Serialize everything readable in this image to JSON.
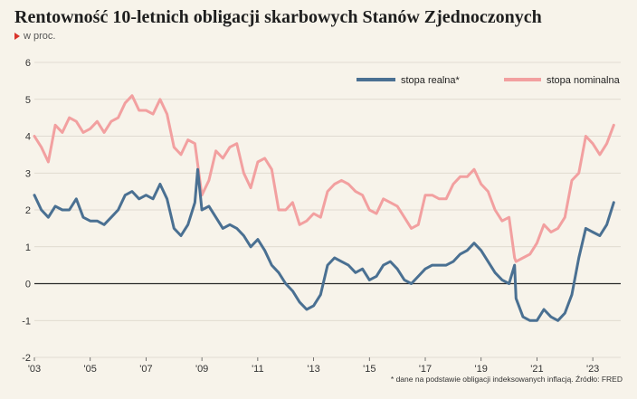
{
  "title": "Rentowność 10-letnich obligacji skarbowych Stanów Zjednoczonych",
  "subtitle": "w proc.",
  "footnote": "* dane na podstawie obligacji indeksowanych inflacją. Źródło: FRED",
  "colors": {
    "real": "#4a7092",
    "nominal": "#f2a0a0",
    "background": "#f7f3ea",
    "accent": "#d9332b"
  },
  "chart_data": {
    "type": "line",
    "title": "Rentowność 10-letnich obligacji skarbowych Stanów Zjednoczonych",
    "ylabel": "w proc.",
    "ylim": [
      -2,
      6
    ],
    "xlim": [
      2003,
      2024
    ],
    "yticks": [
      -2,
      -1,
      0,
      1,
      2,
      3,
      4,
      5,
      6
    ],
    "yticklabels": [
      "-2",
      "-1",
      "0",
      "1",
      "2",
      "3",
      "4",
      "5",
      "6"
    ],
    "xticks": [
      2003,
      2005,
      2007,
      2009,
      2011,
      2013,
      2015,
      2017,
      2019,
      2021,
      2023
    ],
    "xticklabels": [
      "'03",
      "'05",
      "'07",
      "'09",
      "'11",
      "'13",
      "'15",
      "'17",
      "'19",
      "'21",
      "'23"
    ],
    "grid": "horizontal",
    "legend": "top-right",
    "series": [
      {
        "name": "stopa realna*",
        "color": "#4a7092",
        "x": [
          2003.0,
          2003.25,
          2003.5,
          2003.75,
          2004.0,
          2004.25,
          2004.5,
          2004.75,
          2005.0,
          2005.25,
          2005.5,
          2005.75,
          2006.0,
          2006.25,
          2006.5,
          2006.75,
          2007.0,
          2007.25,
          2007.5,
          2007.75,
          2008.0,
          2008.25,
          2008.5,
          2008.75,
          2008.85,
          2009.0,
          2009.25,
          2009.5,
          2009.75,
          2010.0,
          2010.25,
          2010.5,
          2010.75,
          2011.0,
          2011.25,
          2011.5,
          2011.75,
          2012.0,
          2012.25,
          2012.5,
          2012.75,
          2013.0,
          2013.25,
          2013.5,
          2013.75,
          2014.0,
          2014.25,
          2014.5,
          2014.75,
          2015.0,
          2015.25,
          2015.5,
          2015.75,
          2016.0,
          2016.25,
          2016.5,
          2016.75,
          2017.0,
          2017.25,
          2017.5,
          2017.75,
          2018.0,
          2018.25,
          2018.5,
          2018.75,
          2019.0,
          2019.25,
          2019.5,
          2019.75,
          2020.0,
          2020.2,
          2020.25,
          2020.5,
          2020.75,
          2021.0,
          2021.25,
          2021.5,
          2021.75,
          2022.0,
          2022.25,
          2022.5,
          2022.75,
          2023.0,
          2023.25,
          2023.5,
          2023.75
        ],
        "values": [
          2.4,
          2.0,
          1.8,
          2.1,
          2.0,
          2.0,
          2.3,
          1.8,
          1.7,
          1.7,
          1.6,
          1.8,
          2.0,
          2.4,
          2.5,
          2.3,
          2.4,
          2.3,
          2.7,
          2.3,
          1.5,
          1.3,
          1.6,
          2.2,
          3.1,
          2.0,
          2.1,
          1.8,
          1.5,
          1.6,
          1.5,
          1.3,
          1.0,
          1.2,
          0.9,
          0.5,
          0.3,
          0.0,
          -0.2,
          -0.5,
          -0.7,
          -0.6,
          -0.3,
          0.5,
          0.7,
          0.6,
          0.5,
          0.3,
          0.4,
          0.1,
          0.2,
          0.5,
          0.6,
          0.4,
          0.1,
          0.0,
          0.2,
          0.4,
          0.5,
          0.5,
          0.5,
          0.6,
          0.8,
          0.9,
          1.1,
          0.9,
          0.6,
          0.3,
          0.1,
          0.0,
          0.5,
          -0.4,
          -0.9,
          -1.0,
          -1.0,
          -0.7,
          -0.9,
          -1.0,
          -0.8,
          -0.3,
          0.7,
          1.5,
          1.4,
          1.3,
          1.6,
          2.2
        ]
      },
      {
        "name": "stopa nominalna",
        "color": "#f2a0a0",
        "x": [
          2003.0,
          2003.25,
          2003.5,
          2003.75,
          2004.0,
          2004.25,
          2004.5,
          2004.75,
          2005.0,
          2005.25,
          2005.5,
          2005.75,
          2006.0,
          2006.25,
          2006.5,
          2006.75,
          2007.0,
          2007.25,
          2007.5,
          2007.75,
          2008.0,
          2008.25,
          2008.5,
          2008.75,
          2009.0,
          2009.25,
          2009.5,
          2009.75,
          2010.0,
          2010.25,
          2010.5,
          2010.75,
          2011.0,
          2011.25,
          2011.5,
          2011.75,
          2012.0,
          2012.25,
          2012.5,
          2012.75,
          2013.0,
          2013.25,
          2013.5,
          2013.75,
          2014.0,
          2014.25,
          2014.5,
          2014.75,
          2015.0,
          2015.25,
          2015.5,
          2015.75,
          2016.0,
          2016.25,
          2016.5,
          2016.75,
          2017.0,
          2017.25,
          2017.5,
          2017.75,
          2018.0,
          2018.25,
          2018.5,
          2018.75,
          2019.0,
          2019.25,
          2019.5,
          2019.75,
          2020.0,
          2020.2,
          2020.25,
          2020.5,
          2020.75,
          2021.0,
          2021.25,
          2021.5,
          2021.75,
          2022.0,
          2022.25,
          2022.5,
          2022.75,
          2023.0,
          2023.25,
          2023.5,
          2023.75
        ],
        "values": [
          4.0,
          3.7,
          3.3,
          4.3,
          4.1,
          4.5,
          4.4,
          4.1,
          4.2,
          4.4,
          4.1,
          4.4,
          4.5,
          4.9,
          5.1,
          4.7,
          4.7,
          4.6,
          5.0,
          4.6,
          3.7,
          3.5,
          3.9,
          3.8,
          2.4,
          2.8,
          3.6,
          3.4,
          3.7,
          3.8,
          3.0,
          2.6,
          3.3,
          3.4,
          3.1,
          2.0,
          2.0,
          2.2,
          1.6,
          1.7,
          1.9,
          1.8,
          2.5,
          2.7,
          2.8,
          2.7,
          2.5,
          2.4,
          2.0,
          1.9,
          2.3,
          2.2,
          2.1,
          1.8,
          1.5,
          1.6,
          2.4,
          2.4,
          2.3,
          2.3,
          2.7,
          2.9,
          2.9,
          3.1,
          2.7,
          2.5,
          2.0,
          1.7,
          1.8,
          0.7,
          0.6,
          0.7,
          0.8,
          1.1,
          1.6,
          1.4,
          1.5,
          1.8,
          2.8,
          3.0,
          4.0,
          3.8,
          3.5,
          3.8,
          4.3
        ]
      }
    ]
  }
}
